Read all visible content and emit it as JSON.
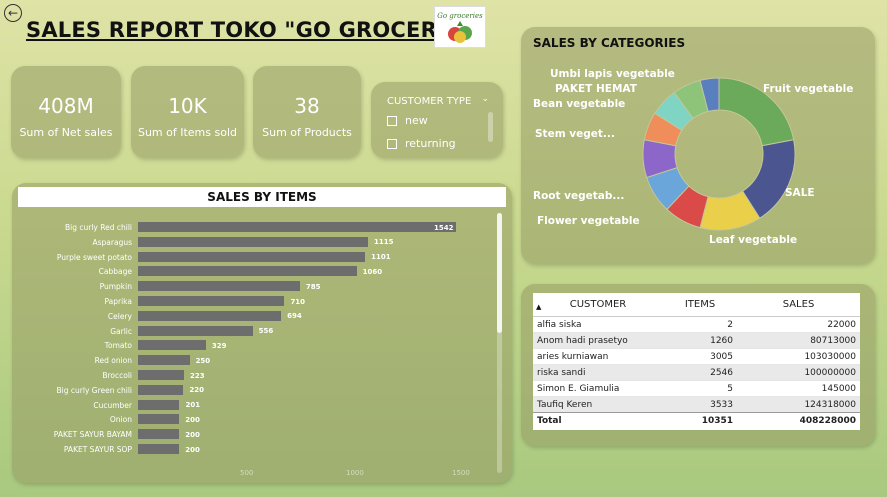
{
  "title": "SALES REPORT TOKO \"GO GROCERIES\"",
  "logo_text": "Go groceries",
  "kpis": [
    {
      "value": "408M",
      "label": "Sum of Net sales"
    },
    {
      "value": "10K",
      "label": "Sum of Items sold"
    },
    {
      "value": "38",
      "label": "Sum of Products"
    }
  ],
  "slicer": {
    "title": "CUSTOMER TYPE",
    "options": [
      "new",
      "returning"
    ]
  },
  "items_chart": {
    "title": "SALES BY ITEMS",
    "chart_data": {
      "type": "bar",
      "orientation": "horizontal",
      "categories": [
        "Big curly Red chili",
        "Asparagus",
        "Purple sweet potato",
        "Cabbage",
        "Pumpkin",
        "Paprika",
        "Celery",
        "Garlic",
        "Tomato",
        "Red onion",
        "Broccoli",
        "Big curly Green chili",
        "Cucumber",
        "Onion",
        "PAKET SAYUR BAYAM",
        "PAKET SAYUR SOP"
      ],
      "values": [
        1542,
        1115,
        1101,
        1060,
        785,
        710,
        694,
        556,
        329,
        250,
        223,
        220,
        201,
        200,
        200,
        200
      ],
      "xlim": [
        0,
        1600
      ],
      "x_ticks": [
        "500",
        "1000",
        "1500"
      ]
    }
  },
  "categories_chart": {
    "title": "SALES BY CATEGORIES",
    "chart_data": {
      "type": "pie",
      "donut": true,
      "labels": [
        "Fruit vegetable",
        "SALE",
        "Leaf vegetable",
        "Flower vegetable",
        "Root vegetab...",
        "Stem veget...",
        "Bean vegetable",
        "PAKET HEMAT",
        "Umbi lapis vegetable",
        ""
      ],
      "values": [
        22,
        19,
        13,
        8,
        8,
        8,
        6,
        6,
        6,
        4
      ],
      "colors": [
        "#6aaa5a",
        "#4b5690",
        "#ead04a",
        "#d94a48",
        "#6aa6da",
        "#8c66c8",
        "#ef8e5a",
        "#7fd4c4",
        "#8dc47a",
        "#5a7fbf"
      ]
    }
  },
  "customer_table": {
    "columns": [
      "CUSTOMER",
      "ITEMS",
      "SALES"
    ],
    "rows": [
      [
        "alfia siska",
        "2",
        "22000"
      ],
      [
        "Anom hadi prasetyo",
        "1260",
        "80713000"
      ],
      [
        "aries kurniawan",
        "3005",
        "103030000"
      ],
      [
        "riska sandi",
        "2546",
        "100000000"
      ],
      [
        "Simon E. Giamulia",
        "5",
        "145000"
      ],
      [
        "Taufiq Keren",
        "3533",
        "124318000"
      ]
    ],
    "total": [
      "Total",
      "10351",
      "408228000"
    ]
  }
}
